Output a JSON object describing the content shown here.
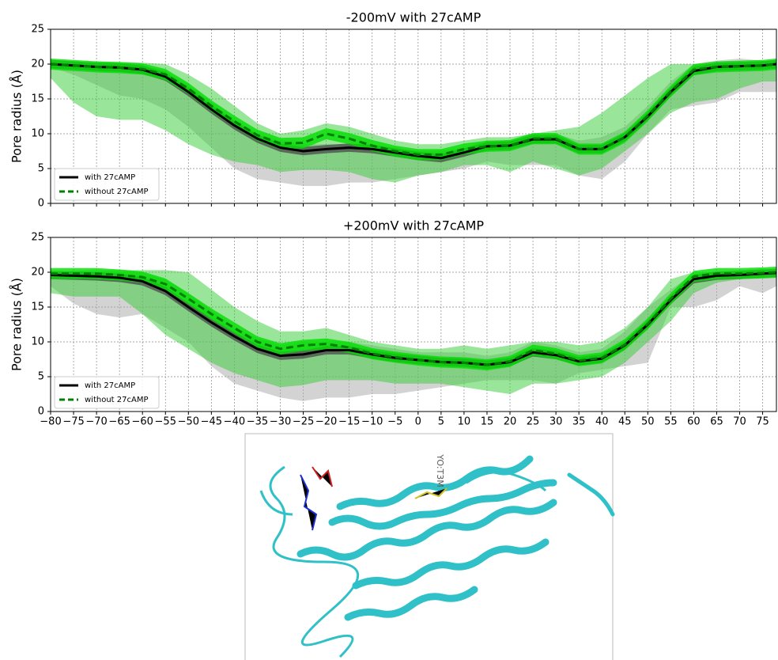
{
  "chart_data": [
    {
      "type": "line",
      "title": "-200mV with 27cAMP",
      "y_label": "Pore radius (Å)",
      "xlim": [
        -80,
        78
      ],
      "ylim": [
        0,
        25
      ],
      "xticks": [
        -80,
        -75,
        -70,
        -65,
        -60,
        -55,
        -50,
        -45,
        -40,
        -35,
        -30,
        -25,
        -20,
        -15,
        -10,
        -5,
        0,
        5,
        10,
        15,
        20,
        25,
        30,
        35,
        40,
        45,
        50,
        55,
        60,
        65,
        70,
        75
      ],
      "yticks": [
        0,
        5,
        10,
        15,
        20,
        25
      ],
      "grid": true,
      "legend": "lower left",
      "x": [
        -80,
        -75,
        -70,
        -65,
        -60,
        -55,
        -50,
        -45,
        -40,
        -35,
        -30,
        -25,
        -20,
        -15,
        -10,
        -5,
        0,
        5,
        10,
        15,
        20,
        25,
        30,
        35,
        40,
        45,
        50,
        55,
        60,
        65,
        70,
        75,
        78
      ],
      "series": [
        {
          "name": "with 27cAMP",
          "color": "#000000",
          "dash": false,
          "band_color": "#505050",
          "range_color": "#a8a8a8",
          "error": 0.6,
          "values": [
            20,
            19.8,
            19.6,
            19.5,
            19.2,
            18.2,
            16,
            13.5,
            11.2,
            9.3,
            8,
            7.5,
            7.8,
            8,
            7.8,
            7.3,
            6.8,
            6.5,
            7.3,
            8.2,
            8.3,
            9.2,
            9.2,
            7.8,
            7.8,
            9.5,
            12.5,
            16,
            19,
            19.6,
            19.7,
            19.8,
            20
          ],
          "range_low": [
            19.5,
            18.5,
            17,
            15.5,
            15,
            13.5,
            11,
            8,
            5,
            3.5,
            3,
            2.5,
            2.5,
            3,
            3,
            3.5,
            4,
            4.5,
            5,
            6,
            5.5,
            5.5,
            5.5,
            4,
            3.5,
            6,
            10,
            13.5,
            14,
            14.5,
            16,
            16,
            16
          ],
          "range_high": [
            20,
            20,
            19.9,
            19.8,
            19.8,
            19,
            17,
            14.5,
            12,
            10,
            9,
            8.5,
            8.5,
            8.5,
            8.5,
            8,
            7.5,
            7.5,
            8,
            9,
            9,
            10,
            10,
            9,
            9.5,
            11,
            14,
            17.5,
            20,
            20.5,
            20.8,
            20.5,
            20
          ]
        },
        {
          "name": "without 27cAMP",
          "color": "#008000",
          "dash": true,
          "band_color": "#00e000",
          "range_color": "#33cc33",
          "error": 0.8,
          "values": [
            20,
            19.8,
            19.6,
            19.5,
            19.3,
            18.5,
            16.5,
            14,
            11.8,
            9.8,
            8.6,
            8.7,
            10,
            9.3,
            8.3,
            7.5,
            7,
            7,
            7.8,
            8.2,
            8.3,
            9.3,
            9.3,
            7.8,
            7.8,
            9.5,
            12.6,
            16.1,
            19.2,
            19.6,
            19.7,
            19.8,
            20
          ],
          "range_low": [
            18,
            14.5,
            12.5,
            12,
            12,
            10.5,
            8.5,
            7,
            6,
            5.5,
            4.5,
            4.8,
            4.8,
            4.5,
            3.5,
            3,
            4,
            4.5,
            5.5,
            5.5,
            4.5,
            6,
            5,
            4,
            5,
            7.5,
            10,
            13,
            14.5,
            15,
            16.5,
            17.5,
            17.5
          ],
          "range_high": [
            20,
            20.2,
            20.3,
            20.3,
            20.2,
            20,
            18.5,
            16.5,
            14,
            11.5,
            10,
            10.5,
            11.5,
            11,
            10,
            9,
            8.5,
            8.5,
            9,
            9.5,
            9.5,
            10,
            10.5,
            11,
            13,
            15.5,
            18,
            20,
            20,
            20,
            20,
            20,
            20
          ]
        }
      ]
    },
    {
      "type": "line",
      "title": "+200mV with 27cAMP",
      "y_label": "Pore radius (Å)",
      "xlim": [
        -80,
        78
      ],
      "ylim": [
        0,
        25
      ],
      "xticks": [
        {
          "value": -80,
          "label": "−80"
        },
        {
          "value": -75,
          "label": "−75"
        },
        {
          "value": -70,
          "label": "−70"
        },
        {
          "value": -65,
          "label": "−65"
        },
        {
          "value": -60,
          "label": "−60"
        },
        {
          "value": -55,
          "label": "−55"
        },
        {
          "value": -50,
          "label": "−50"
        },
        {
          "value": -45,
          "label": "−45"
        },
        {
          "value": -40,
          "label": "−40"
        },
        {
          "value": -35,
          "label": "−35"
        },
        {
          "value": -30,
          "label": "−30"
        },
        {
          "value": -25,
          "label": "−25"
        },
        {
          "value": -20,
          "label": "−20"
        },
        {
          "value": -15,
          "label": "−15"
        },
        {
          "value": -10,
          "label": "−10"
        },
        {
          "value": -5,
          "label": "−5"
        },
        0,
        5,
        10,
        15,
        20,
        25,
        30,
        35,
        40,
        45,
        50,
        55,
        60,
        65,
        70,
        75
      ],
      "yticks": [
        0,
        5,
        10,
        15,
        20,
        25
      ],
      "grid": true,
      "legend": "lower left",
      "show_xtick_labels": true,
      "x": [
        -80,
        -75,
        -70,
        -65,
        -60,
        -55,
        -50,
        -45,
        -40,
        -35,
        -30,
        -25,
        -20,
        -15,
        -10,
        -5,
        0,
        5,
        10,
        15,
        20,
        25,
        30,
        35,
        40,
        45,
        50,
        55,
        60,
        65,
        70,
        75,
        78
      ],
      "series": [
        {
          "name": "with 27cAMP",
          "color": "#000000",
          "dash": false,
          "band_color": "#505050",
          "range_color": "#a8a8a8",
          "error": 0.6,
          "values": [
            19.6,
            19.5,
            19.4,
            19.2,
            18.7,
            17.3,
            15,
            12.8,
            10.8,
            9,
            8,
            8.2,
            8.8,
            8.8,
            8.2,
            7.7,
            7.4,
            7.1,
            7,
            6.7,
            7.1,
            8.5,
            8.1,
            7.2,
            7.6,
            9.5,
            12.5,
            16,
            19,
            19.5,
            19.6,
            19.8,
            19.9
          ],
          "range_low": [
            18,
            15.5,
            14,
            13.5,
            14,
            12,
            10,
            6.5,
            4,
            3,
            2,
            1.5,
            2,
            2,
            2.5,
            2.5,
            3,
            3.5,
            4,
            4.5,
            4.5,
            4.5,
            4,
            5.5,
            6,
            6.5,
            7,
            15,
            15,
            16,
            18,
            17,
            18
          ],
          "range_high": [
            20,
            20,
            20,
            20,
            19.9,
            19,
            17,
            14.5,
            12,
            10.5,
            9.5,
            10,
            10,
            10,
            9.5,
            9,
            8.5,
            8.5,
            8.5,
            8,
            8.5,
            10,
            9.5,
            8.5,
            9,
            11.5,
            15,
            17.5,
            19.8,
            20,
            20.3,
            20.5,
            20
          ]
        },
        {
          "name": "without 27cAMP",
          "color": "#008000",
          "dash": true,
          "band_color": "#00e000",
          "range_color": "#33cc33",
          "error": 0.8,
          "values": [
            19.8,
            19.8,
            19.8,
            19.6,
            19.3,
            18.3,
            16.2,
            14,
            12,
            10,
            9,
            9.5,
            9.7,
            9.2,
            8.3,
            7.8,
            7.4,
            7.1,
            7,
            6.7,
            7.2,
            8.8,
            8.3,
            7.3,
            7.7,
            9.6,
            12.6,
            16.2,
            19.4,
            19.8,
            19.8,
            19.9,
            20
          ],
          "range_low": [
            17,
            16.5,
            16.5,
            16.5,
            14,
            11,
            9,
            7,
            5.5,
            4.5,
            3.5,
            3.8,
            4.5,
            4.5,
            4.5,
            4,
            4,
            4,
            3.5,
            3,
            2.5,
            4,
            4,
            4.5,
            5,
            7,
            10,
            13,
            17,
            18.5,
            19,
            19.5,
            19.5
          ],
          "range_high": [
            19.9,
            20.2,
            20.3,
            20.3,
            20.3,
            20.3,
            20,
            17.5,
            15,
            13,
            11.5,
            11.5,
            12,
            11,
            10,
            9.5,
            9,
            9,
            9.5,
            9,
            9.5,
            10,
            10,
            9.5,
            10,
            12,
            15,
            19,
            20,
            20,
            20,
            20,
            20
          ]
        }
      ]
    }
  ],
  "figure_image": {
    "label": "YO:T3M"
  }
}
